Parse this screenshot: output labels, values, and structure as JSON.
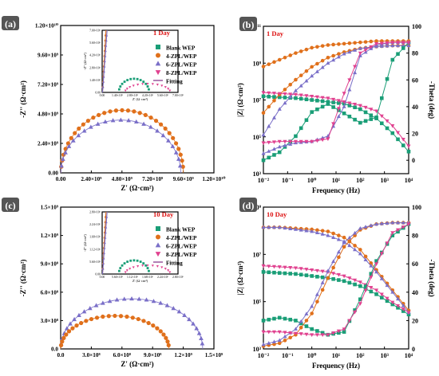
{
  "figure": {
    "panels": [
      "(a)",
      "(b)",
      "(c)",
      "(d)"
    ]
  },
  "legend": {
    "entries": [
      {
        "label": "Blank WEP",
        "color": "#1a9e77",
        "marker": "square"
      },
      {
        "label": "4-ZPL/WEP",
        "color": "#e0701b",
        "marker": "circle"
      },
      {
        "label": "6-ZPL/WEP",
        "color": "#7a6fc8",
        "marker": "triangle-up"
      },
      {
        "label": "8-ZPL/WEP",
        "color": "#e0418f",
        "marker": "triangle-down"
      },
      {
        "label": "Fitting",
        "color": "#8a3d8f",
        "marker": "line"
      }
    ]
  },
  "chart_data": [
    {
      "panel": "(a)",
      "type": "scatter",
      "title": "1 Day",
      "xlabel": "Z' (Ω·cm²)",
      "ylabel": "-Z'' (Ω·cm²)",
      "xlim": [
        0,
        12000000000.0
      ],
      "ylim": [
        0,
        12000000000.0
      ],
      "xticks": [
        "0.00",
        "2.40×10⁹",
        "4.80×10⁹",
        "7.20×10⁹",
        "9.60×10⁹",
        "1.20×10¹⁰"
      ],
      "yticks": [
        "0.00",
        "2.40×10⁹",
        "4.80×10⁹",
        "7.20×10⁹",
        "9.60×10⁹",
        "1.20×10¹⁰"
      ],
      "series": [
        {
          "name": "4-ZPL/WEP",
          "shape": "arc",
          "r0": 20000000.0,
          "r1": 9600000000.0,
          "peak": 5100000000.0,
          "points": 32
        },
        {
          "name": "6-ZPL/WEP",
          "shape": "arc",
          "r0": 20000000.0,
          "r1": 9400000000.0,
          "peak": 4300000000.0,
          "points": 24
        }
      ],
      "inset": {
        "xticks": [
          "0.00",
          "1.40×10⁵",
          "2.80×10⁵",
          "4.20×10⁵",
          "5.60×10⁵",
          "7.00×10⁵"
        ],
        "yticks": [
          "0.00",
          "1.40×10⁶",
          "2.80×10⁶",
          "4.20×10⁶",
          "5.60×10⁶",
          "7.00×10⁶"
        ],
        "xlabel": "Z' (Ω·cm²)",
        "ylabel": "-Z'' (Ω·cm²)",
        "xlim": [
          0,
          700000.0
        ],
        "ylim": [
          0,
          7000000.0
        ]
      }
    },
    {
      "panel": "(b)",
      "type": "line",
      "title": "1 Day",
      "xlabel": "Frequency (Hz)",
      "ylabel": "|Z| (Ω·cm²)",
      "ylabel_right": "-Theta (deg)",
      "xscale": "log",
      "xlim": [
        0.01,
        10000
      ],
      "ylim_log": [
        1000,
        100000000000.0
      ],
      "ylim_right": [
        -10,
        100
      ],
      "xticks": [
        "10⁻²",
        "10⁻¹",
        "10⁰",
        "10¹",
        "10²",
        "10³",
        "10⁴"
      ],
      "yticks": [
        "10³",
        "10⁵",
        "10⁷",
        "10⁹",
        "10¹¹"
      ],
      "yticks_right": [
        "0",
        "20",
        "40",
        "60",
        "80",
        "100"
      ],
      "modulus": [
        {
          "name": "Blank WEP",
          "logZ": [
            7.2,
            7.15,
            7.1,
            7.0,
            6.9,
            6.8,
            6.5,
            6.0,
            5.2,
            4.2
          ]
        },
        {
          "name": "4-ZPL/WEP",
          "logZ": [
            6.3,
            7.3,
            8.1,
            8.8,
            9.3,
            9.6,
            9.8,
            9.9,
            9.95,
            9.95
          ]
        },
        {
          "name": "6-ZPL/WEP",
          "logZ": [
            5.1,
            6.5,
            7.5,
            8.3,
            9.0,
            9.5,
            9.8,
            9.9,
            9.95,
            9.95
          ]
        },
        {
          "name": "8-ZPL/WEP",
          "logZ": [
            7.4,
            7.35,
            7.3,
            7.2,
            7.1,
            6.9,
            6.7,
            6.4,
            5.6,
            4.5
          ]
        }
      ],
      "phase": [
        {
          "name": "Blank WEP",
          "theta": [
            0,
            6,
            18,
            36,
            42,
            35,
            28,
            32,
            75,
            88
          ]
        },
        {
          "name": "4-ZPL/WEP",
          "theta": [
            70,
            75,
            80,
            84,
            86,
            87,
            88,
            89,
            89,
            89
          ]
        },
        {
          "name": "6-ZPL/WEP",
          "theta": [
            5,
            10,
            13,
            14,
            18,
            40,
            78,
            86,
            88,
            88
          ]
        },
        {
          "name": "8-ZPL/WEP",
          "theta": [
            13,
            14,
            14,
            14,
            16,
            50,
            80,
            87,
            88,
            88
          ]
        }
      ]
    },
    {
      "panel": "(c)",
      "type": "scatter",
      "title": "10 Day",
      "xlabel": "Z' (Ω·cm²)",
      "ylabel": "-Z'' (Ω·cm²)",
      "xlim": [
        0,
        1500000000.0
      ],
      "ylim": [
        0,
        1500000000.0
      ],
      "xticks": [
        "0.0",
        "3.0×10⁸",
        "6.0×10⁸",
        "9.0×10⁸",
        "1.2×10⁹",
        "1.5×10⁹"
      ],
      "yticks": [
        "0.0",
        "3.0×10⁸",
        "6.0×10⁸",
        "9.0×10⁸",
        "1.2×10⁹",
        "1.5×10⁹"
      ],
      "series": [
        {
          "name": "6-ZPL/WEP",
          "shape": "arc",
          "r0": 1000000.0,
          "r1": 1390000000.0,
          "peak": 530000000.0,
          "points": 30
        },
        {
          "name": "4-ZPL/WEP",
          "shape": "arc",
          "r0": 1000000.0,
          "r1": 1060000000.0,
          "peak": 350000000.0,
          "points": 28
        }
      ],
      "inset": {
        "xticks": [
          "0.00",
          "5.60×10⁵",
          "1.12×10⁶",
          "1.68×10⁶",
          "2.24×10⁶",
          "2.80×10⁶"
        ],
        "yticks": [
          "0.00",
          "5.60×10⁵",
          "1.12×10⁶",
          "1.68×10⁶",
          "2.24×10⁶",
          "2.80×10⁶"
        ],
        "xlabel": "Z' (Ω·cm²)",
        "ylabel": "-Z'' (Ω·cm²)",
        "xlim": [
          0,
          2800000.0
        ],
        "ylim": [
          0,
          2800000.0
        ]
      }
    },
    {
      "panel": "(d)",
      "type": "line",
      "title": "10 Day",
      "xlabel": "Frequency (Hz)",
      "ylabel": "|Z| (Ω·cm²)",
      "ylabel_right": "-Theta (deg)",
      "xscale": "log",
      "xlim": [
        0.01,
        10000
      ],
      "ylim_log": [
        1000,
        10000000000.0
      ],
      "ylim_right": [
        0,
        100
      ],
      "xticks": [
        "10⁻²",
        "10⁻¹",
        "10⁰",
        "10¹",
        "10²",
        "10³",
        "10⁴"
      ],
      "yticks": [
        "10³",
        "10⁵",
        "10⁷",
        "10⁹"
      ],
      "yticks_right": [
        "0",
        "20",
        "40",
        "60",
        "80",
        "100"
      ],
      "modulus": [
        {
          "name": "Blank WEP",
          "logZ": [
            6.8,
            6.75,
            6.7,
            6.6,
            6.5,
            6.35,
            6.1,
            5.7,
            5.2,
            4.7
          ]
        },
        {
          "name": "4-ZPL/WEP",
          "logZ": [
            9.0,
            9.0,
            8.95,
            8.9,
            8.8,
            8.5,
            7.9,
            6.9,
            5.9,
            4.9
          ]
        },
        {
          "name": "6-ZPL/WEP",
          "logZ": [
            9.0,
            9.0,
            8.9,
            8.8,
            8.6,
            8.3,
            7.7,
            6.8,
            5.8,
            4.8
          ]
        },
        {
          "name": "8-ZPL/WEP",
          "logZ": [
            7.1,
            7.05,
            7.0,
            6.9,
            6.8,
            6.6,
            6.3,
            5.9,
            5.3,
            4.8
          ]
        }
      ],
      "phase": [
        {
          "name": "Blank WEP",
          "theta": [
            20,
            22,
            20,
            14,
            10,
            12,
            35,
            62,
            80,
            88
          ]
        },
        {
          "name": "4-ZPL/WEP",
          "theta": [
            2,
            4,
            10,
            25,
            50,
            72,
            84,
            88,
            89,
            89
          ]
        },
        {
          "name": "6-ZPL/WEP",
          "theta": [
            3,
            6,
            14,
            30,
            55,
            75,
            85,
            88,
            89,
            89
          ]
        },
        {
          "name": "8-ZPL/WEP",
          "theta": [
            12,
            12,
            11,
            10,
            10,
            14,
            32,
            60,
            82,
            88
          ]
        }
      ]
    }
  ]
}
